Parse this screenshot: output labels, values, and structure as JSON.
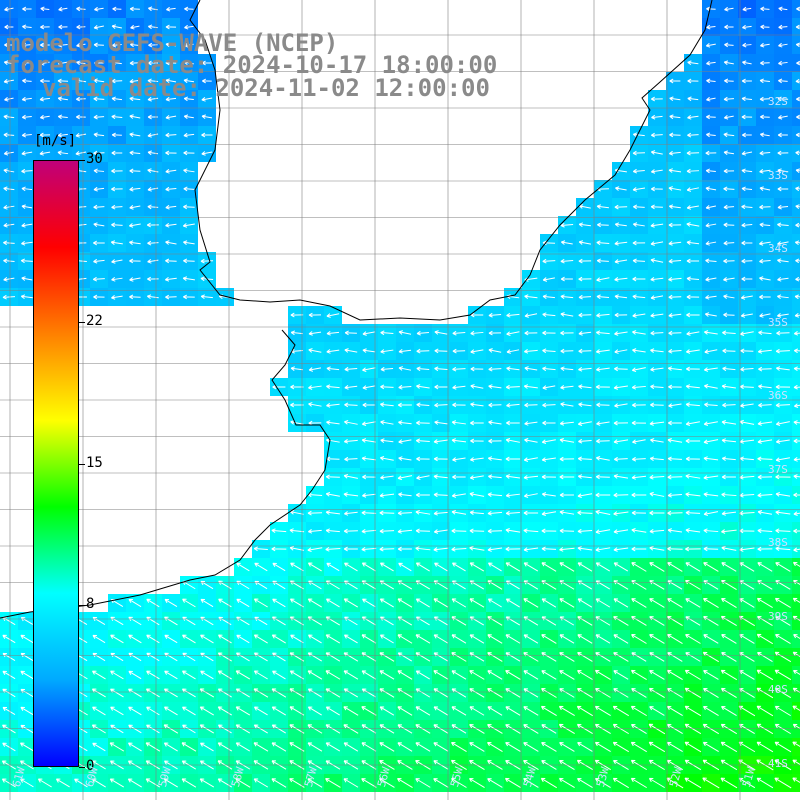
{
  "header": {
    "model_line": "modelo GEFS-WAVE (NCEP)",
    "forecast_line": "forecast date: 2024-10-17 18:00:00",
    "valid_line": "valid date: 2024-11-02 12:00:00"
  },
  "colorbar": {
    "unit": "[m/s]",
    "ticks": [
      "30",
      "22",
      "15",
      "8",
      "0"
    ],
    "tick_values": [
      30,
      22,
      15,
      8,
      0
    ],
    "min": 0,
    "max": 30,
    "colors": [
      "#0000ff",
      "#00aaff",
      "#00ffff",
      "#00ff00",
      "#ffff00",
      "#ff8000",
      "#ff0000",
      "#c0007a"
    ]
  },
  "lat_labels": [
    "32S",
    "33S",
    "34S",
    "35S",
    "36S",
    "37S",
    "38S",
    "39S",
    "40S",
    "41S"
  ],
  "lon_labels": [
    "61W",
    "60W",
    "59W",
    "58W",
    "57W",
    "56W",
    "55W",
    "54W",
    "53W",
    "52W",
    "51W"
  ],
  "colors": {
    "land": "#ffffff",
    "grid": "#808080",
    "coast": "#000000",
    "arrow": "#ffffff",
    "header_text": "#8a8a8a"
  }
}
